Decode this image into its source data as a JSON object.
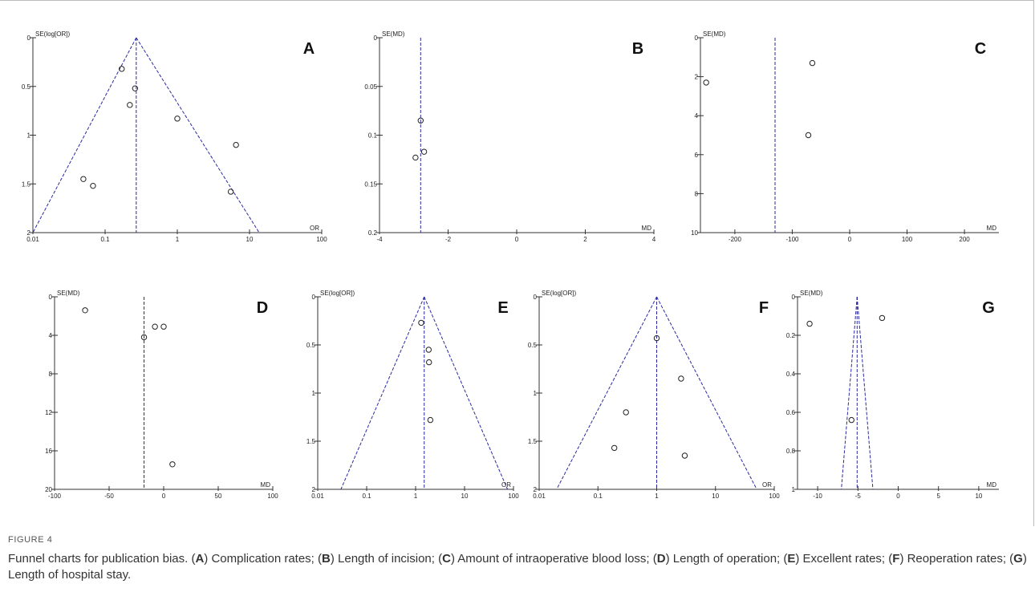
{
  "figure": {
    "label": "FIGURE 4",
    "caption": [
      {
        "t": "Funnel charts for publication bias. ("
      },
      {
        "t": "A",
        "b": true
      },
      {
        "t": ") Complication rates; ("
      },
      {
        "t": "B",
        "b": true
      },
      {
        "t": ") Length of incision; ("
      },
      {
        "t": "C",
        "b": true
      },
      {
        "t": ") Amount of intraoperative blood loss; ("
      },
      {
        "t": "D",
        "b": true
      },
      {
        "t": ") Length of operation; ("
      },
      {
        "t": "E",
        "b": true
      },
      {
        "t": ") Excellent rates; ("
      },
      {
        "t": "F",
        "b": true
      },
      {
        "t": ") Reoperation rates; ("
      },
      {
        "t": "G",
        "b": true
      },
      {
        "t": ") Length of hospital stay."
      }
    ]
  },
  "chart_data": [
    {
      "type": "scatter",
      "panel": "A",
      "ylabel": "SE(log[OR])",
      "xlabel": "OR",
      "x_scale": "log",
      "xticks": [
        "0.01",
        "0.1",
        "1",
        "10",
        "100"
      ],
      "xlim": [
        0.01,
        100
      ],
      "yticks": [
        "0",
        "0.5",
        "1",
        "1.5",
        "2"
      ],
      "ylim": [
        0,
        2
      ],
      "y_inverted": true,
      "center": 0.27,
      "funnel": "pseudo-95%",
      "points": [
        [
          0.17,
          0.32
        ],
        [
          0.26,
          0.52
        ],
        [
          0.22,
          0.69
        ],
        [
          1.0,
          0.83
        ],
        [
          6.5,
          1.1
        ],
        [
          0.05,
          1.45
        ],
        [
          0.068,
          1.52
        ],
        [
          5.5,
          1.58
        ]
      ]
    },
    {
      "type": "scatter",
      "panel": "B",
      "ylabel": "SE(MD)",
      "xlabel": "MD",
      "x_scale": "linear",
      "xticks": [
        "-4",
        "-2",
        "0",
        "2",
        "4"
      ],
      "xlim": [
        -4,
        4
      ],
      "yticks": [
        "0",
        "0.05",
        "0.1",
        "0.15",
        "0.2"
      ],
      "ylim": [
        0,
        0.2
      ],
      "y_inverted": true,
      "center": -2.8,
      "funnel": "none",
      "points": [
        [
          -2.8,
          0.085
        ],
        [
          -2.7,
          0.117
        ],
        [
          -2.95,
          0.123
        ]
      ]
    },
    {
      "type": "scatter",
      "panel": "C",
      "ylabel": "SE(MD)",
      "xlabel": "MD",
      "x_scale": "linear",
      "xticks": [
        "-200",
        "-100",
        "0",
        "100",
        "200"
      ],
      "xlim": [
        -260,
        260
      ],
      "yticks": [
        "0",
        "2",
        "4",
        "6",
        "8",
        "10"
      ],
      "ylim": [
        0,
        10
      ],
      "y_inverted": true,
      "center": -130,
      "funnel": "none",
      "points": [
        [
          -250,
          2.3
        ],
        [
          -65,
          1.3
        ],
        [
          -72,
          5.0
        ]
      ]
    },
    {
      "type": "scatter",
      "panel": "D",
      "ylabel": "SE(MD)",
      "xlabel": "MD",
      "x_scale": "linear",
      "xticks": [
        "-100",
        "-50",
        "0",
        "50",
        "100"
      ],
      "xlim": [
        -100,
        100
      ],
      "yticks": [
        "0",
        "4",
        "8",
        "12",
        "16",
        "20"
      ],
      "ylim": [
        0,
        20
      ],
      "y_inverted": true,
      "center": -18,
      "funnel": "none",
      "points": [
        [
          -72,
          1.4
        ],
        [
          -8,
          3.1
        ],
        [
          0,
          3.1
        ],
        [
          -18,
          4.2
        ],
        [
          8,
          17.4
        ]
      ]
    },
    {
      "type": "scatter",
      "panel": "E",
      "ylabel": "SE(log[OR])",
      "xlabel": "OR",
      "x_scale": "log",
      "xticks": [
        "0.01",
        "0.1",
        "1",
        "10",
        "100"
      ],
      "xlim": [
        0.01,
        100
      ],
      "yticks": [
        "0",
        "0.5",
        "1",
        "1.5",
        "2"
      ],
      "ylim": [
        0,
        2
      ],
      "y_inverted": true,
      "center": 1.5,
      "funnel": "pseudo-95%",
      "points": [
        [
          1.3,
          0.27
        ],
        [
          1.85,
          0.55
        ],
        [
          1.88,
          0.68
        ],
        [
          2.0,
          1.28
        ]
      ]
    },
    {
      "type": "scatter",
      "panel": "F",
      "ylabel": "SE(log[OR])",
      "xlabel": "OR",
      "x_scale": "log",
      "xticks": [
        "0.01",
        "0.1",
        "1",
        "10",
        "100"
      ],
      "xlim": [
        0.01,
        100
      ],
      "yticks": [
        "0",
        "0.5",
        "1",
        "1.5",
        "2"
      ],
      "ylim": [
        0,
        2
      ],
      "y_inverted": true,
      "center": 1.0,
      "funnel": "pseudo-95%",
      "points": [
        [
          1.0,
          0.43
        ],
        [
          2.6,
          0.85
        ],
        [
          0.3,
          1.2
        ],
        [
          0.19,
          1.57
        ],
        [
          3.0,
          1.65
        ]
      ]
    },
    {
      "type": "scatter",
      "panel": "G",
      "ylabel": "SE(MD)",
      "xlabel": "MD",
      "x_scale": "linear",
      "xticks": [
        "-10",
        "-5",
        "0",
        "5",
        "10"
      ],
      "xlim": [
        -12.5,
        12.5
      ],
      "yticks": [
        "0",
        "0.2",
        "0.4",
        "0.6",
        "0.8",
        "1"
      ],
      "ylim": [
        0,
        1
      ],
      "y_inverted": true,
      "center": -5.1,
      "funnel": "pseudo-95%",
      "points": [
        [
          -11,
          0.14
        ],
        [
          -2,
          0.11
        ],
        [
          -5.8,
          0.64
        ]
      ]
    }
  ]
}
